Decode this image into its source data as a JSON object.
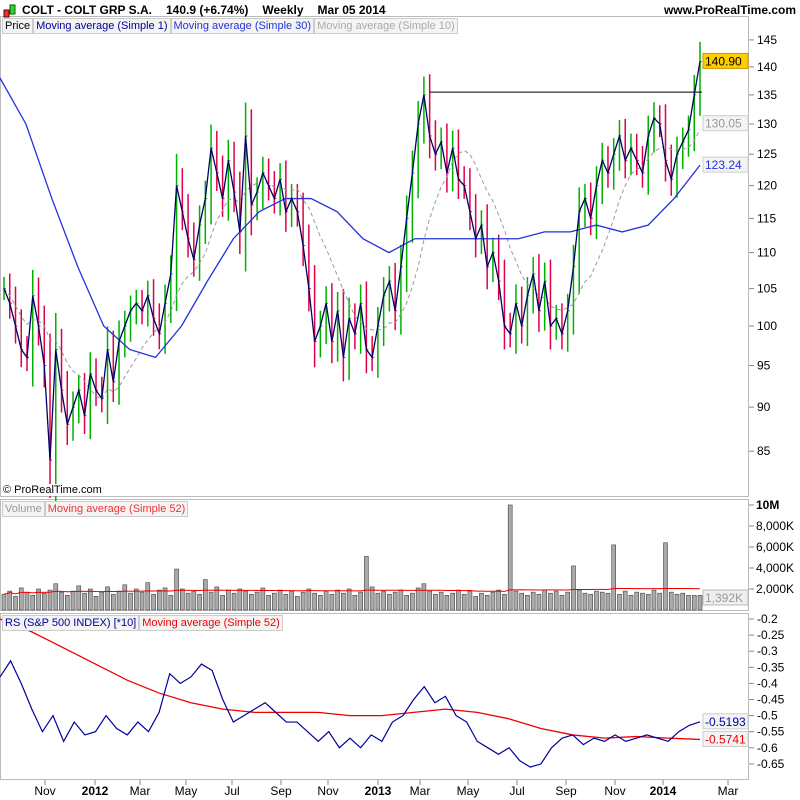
{
  "header": {
    "symbol": "COLT - COLT GRP S.A.",
    "price": "140.9 (+6.74%)",
    "period": "Weekly",
    "date": "Mar 05 2014",
    "site": "www.ProRealTime.com"
  },
  "copyright": "© ProRealTime.com",
  "colors": {
    "up": "#00b000",
    "down": "#e0004a",
    "close_line": "#000066",
    "ma30": "#2233dd",
    "ma10": "#999999",
    "rs": "#000099",
    "ma52": "#ee0000",
    "volume": "#999999"
  },
  "chart_data": [
    {
      "type": "bar",
      "panel": "price",
      "legend": [
        "Price",
        "Moving average (Simple 1)",
        "Moving average (Simple 30)",
        "Moving average (Simple 10)"
      ],
      "scale": "log",
      "ylim": [
        80,
        147
      ],
      "yticks": [
        "145",
        "140",
        "135",
        "130",
        "125",
        "120",
        "115",
        "110",
        "105",
        "100",
        "95",
        "90",
        "85"
      ],
      "last_labels": {
        "price": "140.90",
        "ma10": "130.05",
        "ma30": "123.24"
      },
      "resistance": 135.5,
      "close": [
        105,
        103,
        100,
        97,
        96,
        104,
        100,
        95,
        84,
        97,
        92,
        88,
        90,
        92,
        89,
        94,
        92,
        91,
        97,
        93,
        98,
        100,
        102,
        103,
        102,
        104,
        101,
        99,
        103,
        107,
        120,
        116,
        112,
        109,
        114,
        118,
        126,
        122,
        118,
        124,
        119,
        113,
        128,
        117,
        119,
        122,
        120,
        118,
        121,
        116,
        118,
        116,
        111,
        105,
        98,
        100,
        103,
        98,
        102,
        96,
        101,
        99,
        103,
        97,
        96,
        100,
        104,
        106,
        102,
        108,
        115,
        122,
        130,
        135,
        128,
        125,
        127,
        122,
        126,
        121,
        120,
        116,
        112,
        114,
        108,
        110,
        106,
        100,
        99,
        103,
        100,
        104,
        107,
        102,
        106,
        100,
        101,
        99,
        102,
        108,
        116,
        118,
        115,
        120,
        124,
        122,
        125,
        128,
        124,
        126,
        124,
        122,
        128,
        131,
        130,
        124,
        121,
        125,
        127,
        129,
        135,
        141
      ],
      "ma30": [
        138,
        130,
        118,
        108,
        100,
        97,
        96,
        100,
        106,
        112,
        116,
        118,
        118,
        116,
        112,
        110,
        112,
        112,
        112,
        112,
        112,
        113,
        113,
        114,
        113,
        114,
        118,
        123.24
      ]
    },
    {
      "type": "bar",
      "panel": "volume",
      "legend": [
        "Volume",
        "Moving average (Simple 52)"
      ],
      "yticks": [
        "10M",
        "8,000K",
        "6,000K",
        "4,000K",
        "2,000K"
      ],
      "last_label": "1,392K",
      "ylim": [
        0,
        10000
      ]
    },
    {
      "type": "line",
      "panel": "rs",
      "legend": [
        "RS (S&P 500 INDEX) [*10]",
        "Moving average (Simple 52)"
      ],
      "yticks": [
        "-0.2",
        "-0.25",
        "-0.3",
        "-0.35",
        "-0.4",
        "-0.45",
        "-0.5",
        "-0.55",
        "-0.6",
        "-0.65"
      ],
      "last_labels": {
        "rs": "-0.5193",
        "ma52": "-0.5741"
      },
      "ylim": [
        -0.68,
        -0.18
      ],
      "rs": [
        -0.38,
        -0.33,
        -0.4,
        -0.48,
        -0.55,
        -0.5,
        -0.58,
        -0.52,
        -0.56,
        -0.55,
        -0.5,
        -0.54,
        -0.56,
        -0.52,
        -0.55,
        -0.49,
        -0.37,
        -0.4,
        -0.38,
        -0.34,
        -0.36,
        -0.45,
        -0.52,
        -0.5,
        -0.48,
        -0.46,
        -0.49,
        -0.52,
        -0.52,
        -0.55,
        -0.58,
        -0.55,
        -0.6,
        -0.57,
        -0.6,
        -0.56,
        -0.58,
        -0.52,
        -0.5,
        -0.45,
        -0.41,
        -0.46,
        -0.44,
        -0.5,
        -0.52,
        -0.58,
        -0.6,
        -0.62,
        -0.6,
        -0.64,
        -0.66,
        -0.65,
        -0.6,
        -0.57,
        -0.56,
        -0.59,
        -0.57,
        -0.58,
        -0.56,
        -0.58,
        -0.57,
        -0.56,
        -0.57,
        -0.58,
        -0.55,
        -0.53,
        -0.5193
      ],
      "ma52": [
        -0.2,
        -0.24,
        -0.29,
        -0.34,
        -0.39,
        -0.43,
        -0.46,
        -0.48,
        -0.49,
        -0.49,
        -0.49,
        -0.5,
        -0.5,
        -0.49,
        -0.48,
        -0.49,
        -0.51,
        -0.54,
        -0.56,
        -0.57,
        -0.565,
        -0.57,
        -0.5741
      ]
    }
  ],
  "volume": [
    1500,
    1800,
    1300,
    2100,
    1700,
    1400,
    2000,
    1600,
    1900,
    2500,
    1700,
    1400,
    1800,
    2300,
    1600,
    2000,
    1300,
    1700,
    2200,
    1500,
    1800,
    2400,
    1600,
    2000,
    1700,
    2600,
    1500,
    1900,
    2100,
    1400,
    3900,
    2000,
    1600,
    1800,
    1500,
    2900,
    1700,
    2200,
    1400,
    1900,
    1600,
    2000,
    1800,
    1500,
    1700,
    2100,
    1400,
    1600,
    1900,
    1500,
    1800,
    1300,
    1700,
    2000,
    1600,
    1400,
    1800,
    1500,
    1900,
    1600,
    2000,
    1400,
    1700,
    5100,
    2200,
    1600,
    1800,
    1500,
    1700,
    1900,
    1400,
    1600,
    2100,
    2500,
    1800,
    1500,
    1700,
    1400,
    1600,
    1900,
    1500,
    1800,
    1300,
    1600,
    1400,
    1700,
    1900,
    1500,
    10000,
    1800,
    1600,
    1400,
    1700,
    1500,
    1900,
    1600,
    1800,
    1400,
    1700,
    4200,
    1900,
    1600,
    1500,
    1800,
    1700,
    1600,
    6200,
    1500,
    1800,
    1400,
    1700,
    1600,
    1500,
    1900,
    1600,
    6400,
    1700,
    1500,
    1600,
    1392,
    1392,
    1392
  ],
  "xaxis": [
    "Nov",
    "2012",
    "Mar",
    "May",
    "Jul",
    "Sep",
    "Nov",
    "2013",
    "Mar",
    "May",
    "Jul",
    "Sep",
    "Nov",
    "2014",
    "Mar"
  ]
}
